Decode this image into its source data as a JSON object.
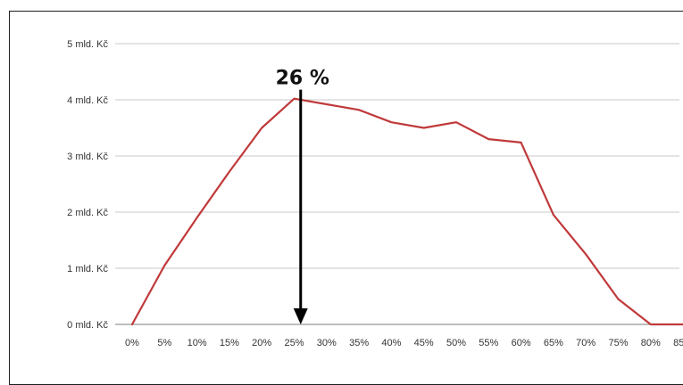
{
  "chart_data": {
    "type": "line",
    "title": "",
    "xlabel": "",
    "ylabel": "",
    "categories": [
      "0%",
      "5%",
      "10%",
      "15%",
      "20%",
      "25%",
      "30%",
      "35%",
      "40%",
      "45%",
      "50%",
      "55%",
      "60%",
      "65%",
      "70%",
      "75%",
      "80%",
      "85%"
    ],
    "x": [
      0,
      5,
      10,
      15,
      20,
      25,
      30,
      35,
      40,
      45,
      50,
      55,
      60,
      65,
      70,
      75,
      80,
      85
    ],
    "y_ticks": [
      "0 mld. Kč",
      "1 mld. Kč",
      "2 mld. Kč",
      "3 mld. Kč",
      "4 mld. Kč",
      "5 mld. Kč"
    ],
    "y_tick_values": [
      0,
      1,
      2,
      3,
      4,
      5
    ],
    "ylim": [
      0,
      5
    ],
    "xlim": [
      0,
      85
    ],
    "grid": "horizontal",
    "legend": "none",
    "series": [
      {
        "color": "#c0393b",
        "values": [
          0,
          1.05,
          1.9,
          2.72,
          3.5,
          4.02,
          3.92,
          3.82,
          3.6,
          3.5,
          3.6,
          3.3,
          3.24,
          1.95,
          1.25,
          0.45,
          0,
          0
        ]
      }
    ],
    "annotation": {
      "text": "26 %",
      "x": 26
    }
  },
  "colors": {
    "line": "#c0393b",
    "grid": "#c8c8c8",
    "arrow": "#000000",
    "axis": "#7f7f7f"
  }
}
